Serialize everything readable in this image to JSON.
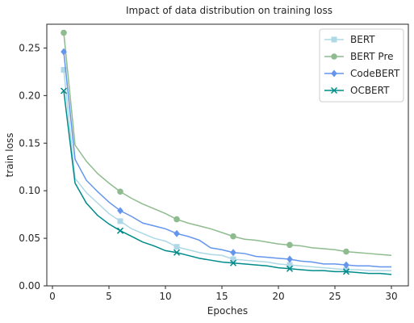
{
  "chart_data": {
    "type": "line",
    "title": "Impact of data distribution on training loss",
    "xlabel": "Epoches",
    "ylabel": "train loss",
    "xlim": [
      -0.5,
      31.5
    ],
    "ylim": [
      0.0,
      0.275
    ],
    "xticks": [
      0,
      5,
      10,
      15,
      20,
      25,
      30
    ],
    "yticks": [
      0.0,
      0.05,
      0.1,
      0.15,
      0.2,
      0.25
    ],
    "ytick_labels": [
      "0.00",
      "0.05",
      "0.10",
      "0.15",
      "0.20",
      "0.25"
    ],
    "legend_position": "top-right",
    "grid": false,
    "x": [
      1,
      2,
      3,
      4,
      5,
      6,
      7,
      8,
      9,
      10,
      11,
      12,
      13,
      14,
      15,
      16,
      17,
      18,
      19,
      20,
      21,
      22,
      23,
      24,
      25,
      26,
      27,
      28,
      29,
      30
    ],
    "marker_x": [
      1,
      6,
      11,
      16,
      21,
      26
    ],
    "series": [
      {
        "name": "BERT",
        "color": "#add8e6",
        "marker": "square",
        "values": [
          0.227,
          0.113,
          0.098,
          0.087,
          0.076,
          0.068,
          0.06,
          0.055,
          0.05,
          0.047,
          0.041,
          0.038,
          0.035,
          0.033,
          0.032,
          0.028,
          0.027,
          0.026,
          0.025,
          0.023,
          0.022,
          0.021,
          0.02,
          0.019,
          0.018,
          0.017,
          0.017,
          0.016,
          0.016,
          0.016
        ]
      },
      {
        "name": "BERT Pre",
        "color": "#8fbc8f",
        "marker": "circle",
        "values": [
          0.266,
          0.148,
          0.131,
          0.118,
          0.108,
          0.099,
          0.092,
          0.086,
          0.081,
          0.076,
          0.07,
          0.066,
          0.063,
          0.06,
          0.056,
          0.052,
          0.049,
          0.048,
          0.046,
          0.044,
          0.043,
          0.042,
          0.04,
          0.039,
          0.038,
          0.036,
          0.035,
          0.034,
          0.033,
          0.032
        ]
      },
      {
        "name": "CodeBERT",
        "color": "#6495ed",
        "marker": "diamond",
        "values": [
          0.246,
          0.133,
          0.111,
          0.099,
          0.088,
          0.079,
          0.073,
          0.066,
          0.063,
          0.06,
          0.055,
          0.052,
          0.048,
          0.04,
          0.038,
          0.035,
          0.034,
          0.031,
          0.03,
          0.029,
          0.028,
          0.026,
          0.025,
          0.023,
          0.023,
          0.022,
          0.021,
          0.021,
          0.02,
          0.02
        ]
      },
      {
        "name": "OCBERT",
        "color": "#008b8b",
        "marker": "x",
        "values": [
          0.205,
          0.108,
          0.087,
          0.074,
          0.065,
          0.058,
          0.052,
          0.046,
          0.042,
          0.037,
          0.035,
          0.032,
          0.029,
          0.027,
          0.025,
          0.024,
          0.023,
          0.022,
          0.021,
          0.019,
          0.018,
          0.017,
          0.016,
          0.016,
          0.015,
          0.015,
          0.014,
          0.013,
          0.013,
          0.012
        ]
      }
    ]
  }
}
